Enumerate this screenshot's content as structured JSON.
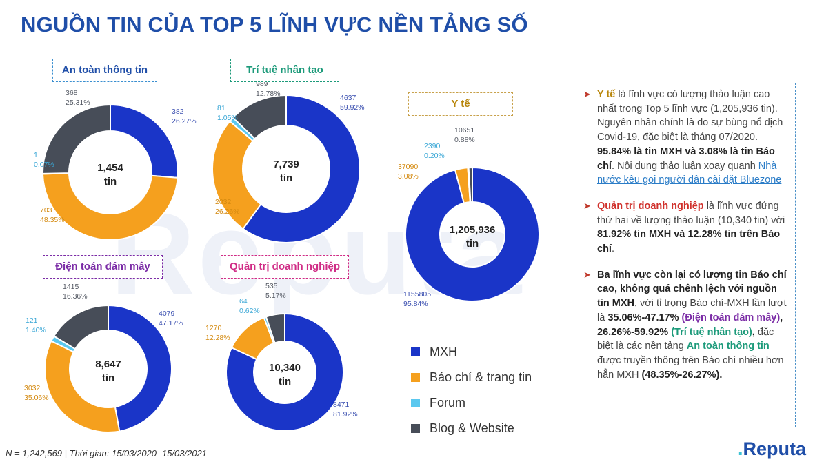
{
  "title": "NGUỒN TIN CỦA TOP 5 LĨNH VỰC NỀN TẢNG SỐ",
  "watermark": "Reputa",
  "colors": {
    "MXH": "#1a35c8",
    "Báo chí & trang tin": "#f5a01e",
    "Forum": "#5bc8ef",
    "Blog & Website": "#474d58",
    "title": "#1f4ea8"
  },
  "chart_data": [
    {
      "type": "donut",
      "title": "An toàn thông tin",
      "center": [
        "1,454",
        "tin"
      ],
      "labels": [
        "MXH",
        "Báo chí & trang tin",
        "Forum",
        "Blog & Website"
      ],
      "values": [
        382,
        703,
        1,
        368
      ],
      "percents": [
        "26.27%",
        "48.35%",
        "0.07%",
        "25.31%"
      ]
    },
    {
      "type": "donut",
      "title": "Trí tuệ nhân tạo",
      "center": [
        "7,739",
        "tin"
      ],
      "labels": [
        "MXH",
        "Báo chí & trang tin",
        "Forum",
        "Blog & Website"
      ],
      "values": [
        4637,
        2032,
        81,
        989
      ],
      "percents": [
        "59.92%",
        "26.26%",
        "1.05%",
        "12.78%"
      ]
    },
    {
      "type": "donut",
      "title": "Y tế",
      "center": [
        "1,205,936",
        "tin"
      ],
      "labels": [
        "MXH",
        "Báo chí & trang tin",
        "Forum",
        "Blog & Website"
      ],
      "values": [
        1155805,
        37090,
        2390,
        10651
      ],
      "percents": [
        "95.84%",
        "3.08%",
        "0.20%",
        "0.88%"
      ]
    },
    {
      "type": "donut",
      "title": "Điện toán đám mây",
      "center": [
        "8,647",
        "tin"
      ],
      "labels": [
        "MXH",
        "Báo chí & trang tin",
        "Forum",
        "Blog & Website"
      ],
      "values": [
        4079,
        3032,
        121,
        1415
      ],
      "percents": [
        "47.17%",
        "35.06%",
        "1.40%",
        "16.36%"
      ]
    },
    {
      "type": "donut",
      "title": "Quản trị doanh nghiệp",
      "center": [
        "10,340",
        "tin"
      ],
      "labels": [
        "MXH",
        "Báo chí & trang tin",
        "Forum",
        "Blog & Website"
      ],
      "values": [
        8471,
        1270,
        64,
        535
      ],
      "percents": [
        "81.92%",
        "12.28%",
        "0.62%",
        "5.17%"
      ]
    }
  ],
  "legend": [
    {
      "label": "MXH",
      "color": "#1a35c8"
    },
    {
      "label": "Báo chí & trang tin",
      "color": "#f5a01e"
    },
    {
      "label": "Forum",
      "color": "#5bc8ef"
    },
    {
      "label": "Blog & Website",
      "color": "#474d58"
    }
  ],
  "info": {
    "p1": {
      "s1": "Y tế",
      "s2": " là lĩnh vực có lượng thảo luận cao nhất trong Top 5 lĩnh vực (1,205,936 tin). Nguyên nhân chính là do sự bùng nổ dịch Covid-19, đặc biệt là tháng 07/2020. ",
      "s3": "95.84% là tin MXH và 3.08% là tin Báo chí",
      "s4": ". Nội dung thảo luận xoay quanh ",
      "s5": "Nhà nước kêu gọi người dân cài đặt Bluezone"
    },
    "p2": {
      "s1": "Quản trị doanh nghiệp",
      "s2": " là lĩnh vực đứng thứ hai về lượng thảo luận (10,340 tin) với ",
      "s3": "81.92% tin MXH và 12.28% tin trên Báo chí",
      "s4": "."
    },
    "p3": {
      "s1": "Ba lĩnh vực còn lại có lượng tin Báo chí cao, không quá chênh lệch với nguồn tin MXH",
      "s2": ", với tỉ trọng Báo chí-MXH lần lượt là ",
      "s3": "35.06%-47.17% ",
      "s4": "(Điện toán đám mây)",
      "s5": ", 26.26%-59.92% ",
      "s6": "(Trí tuệ nhân tạo)",
      "s7": ",",
      "s8": " đặc biệt là các nền tảng ",
      "s9": "An toàn thông tin",
      "s10": " được truyền thông trên Báo chí nhiều hơn hẳn MXH ",
      "s11": "(48.35%-26.27%)."
    },
    "bullet": "➤"
  },
  "footnote": "N = 1,242,569 | Thời gian: 15/03/2020 -15/03/2021",
  "logo": {
    "main": "Reputa",
    "dot": "."
  }
}
